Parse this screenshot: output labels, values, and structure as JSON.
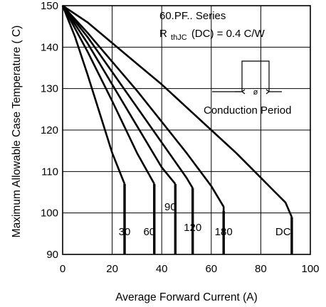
{
  "chart_data": {
    "type": "line",
    "title": "",
    "xlabel": "Average Forward Current (A)",
    "ylabel": "Maximum Allowable Case Temperature ( C)",
    "xlim": [
      0,
      100
    ],
    "ylim": [
      90,
      150
    ],
    "x_ticks": [
      0,
      20,
      40,
      60,
      80,
      100
    ],
    "y_ticks": [
      90,
      100,
      110,
      120,
      130,
      140,
      150
    ],
    "grid": true,
    "annotation": {
      "series_name": "60.PF.. Series",
      "rth_prefix": "R",
      "rth_sub": "thJC",
      "rth_rest": "(DC) = 0.4  C/W",
      "conduction_label": "Conduction Period",
      "conduction_symbol": "ø"
    },
    "series": [
      {
        "name": "30",
        "label_at": [
          25,
          95.5
        ],
        "drop_to": 90,
        "points": [
          [
            0,
            150
          ],
          [
            5,
            142.5
          ],
          [
            10,
            133.5
          ],
          [
            15,
            124
          ],
          [
            20,
            114.5
          ],
          [
            25,
            107
          ]
        ]
      },
      {
        "name": "60",
        "label_at": [
          35,
          95.5
        ],
        "drop_to": 90,
        "points": [
          [
            0,
            150
          ],
          [
            10,
            139
          ],
          [
            20,
            127
          ],
          [
            30,
            114.5
          ],
          [
            37,
            107
          ]
        ]
      },
      {
        "name": "90",
        "label_at": [
          43.5,
          101.5
        ],
        "drop_to": 90,
        "points": [
          [
            0,
            150
          ],
          [
            10,
            141
          ],
          [
            20,
            131
          ],
          [
            30,
            121
          ],
          [
            40,
            111
          ],
          [
            45.5,
            107
          ]
        ]
      },
      {
        "name": "120",
        "label_at": [
          52.5,
          96.5
        ],
        "drop_to": 90,
        "points": [
          [
            0,
            150
          ],
          [
            10,
            142.5
          ],
          [
            20,
            134
          ],
          [
            30,
            125.5
          ],
          [
            40,
            117
          ],
          [
            50,
            108.5
          ],
          [
            52.5,
            106
          ]
        ]
      },
      {
        "name": "180",
        "label_at": [
          65,
          95.5
        ],
        "drop_to": 90,
        "points": [
          [
            0,
            150
          ],
          [
            10,
            143.5
          ],
          [
            20,
            136.5
          ],
          [
            30,
            129.5
          ],
          [
            40,
            122
          ],
          [
            50,
            114.5
          ],
          [
            60,
            106.5
          ],
          [
            65,
            101.5
          ],
          [
            65,
            100.5
          ]
        ]
      },
      {
        "name": "DC",
        "label_at": [
          89,
          95.5
        ],
        "drop_to": 90,
        "points": [
          [
            0,
            150
          ],
          [
            10,
            146
          ],
          [
            20,
            141
          ],
          [
            30,
            136
          ],
          [
            40,
            131
          ],
          [
            50,
            125.5
          ],
          [
            60,
            120
          ],
          [
            70,
            114.5
          ],
          [
            80,
            108.5
          ],
          [
            90,
            102.5
          ],
          [
            92.5,
            99
          ]
        ]
      }
    ]
  }
}
